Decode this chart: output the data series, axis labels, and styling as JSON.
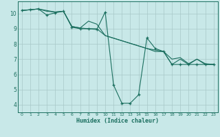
{
  "bg_color": "#c8e8e8",
  "grid_color": "#a8c8c8",
  "line_color": "#1a6e5e",
  "xlabel": "Humidex (Indice chaleur)",
  "xlim": [
    -0.5,
    23.5
  ],
  "ylim": [
    3.5,
    10.8
  ],
  "yticks": [
    4,
    5,
    6,
    7,
    8,
    9,
    10
  ],
  "xticks": [
    0,
    1,
    2,
    3,
    4,
    5,
    6,
    7,
    8,
    9,
    10,
    11,
    12,
    13,
    14,
    15,
    16,
    17,
    18,
    19,
    20,
    21,
    22,
    23
  ],
  "line1_x": [
    0,
    1,
    2,
    3,
    4,
    5,
    6,
    7,
    8,
    9,
    10,
    15,
    16,
    17,
    18,
    19,
    20,
    21,
    22,
    23
  ],
  "line1_y": [
    10.2,
    10.25,
    10.3,
    10.2,
    10.1,
    10.15,
    9.15,
    9.05,
    9.0,
    9.0,
    8.55,
    7.7,
    7.6,
    7.5,
    7.0,
    7.1,
    6.7,
    7.0,
    6.7,
    6.65
  ],
  "line2_x": [
    0,
    1,
    2,
    3,
    4,
    5,
    6,
    7,
    8,
    9,
    10,
    11,
    12,
    13,
    14,
    15,
    16,
    17,
    18,
    19,
    20,
    21,
    22,
    23
  ],
  "line2_y": [
    10.2,
    10.25,
    10.3,
    9.9,
    10.05,
    10.15,
    9.1,
    9.0,
    9.0,
    8.95,
    10.1,
    5.3,
    4.1,
    4.1,
    4.65,
    8.4,
    7.7,
    7.5,
    6.65,
    6.65,
    6.65,
    6.65,
    6.65,
    6.65
  ],
  "line3_x": [
    0,
    1,
    2,
    3,
    4,
    5,
    6,
    7,
    8,
    9,
    10,
    15,
    16,
    17,
    18,
    19,
    20,
    21,
    22,
    23
  ],
  "line3_y": [
    10.2,
    10.25,
    10.3,
    10.15,
    10.1,
    10.15,
    9.15,
    9.05,
    9.5,
    9.3,
    8.55,
    7.7,
    7.5,
    7.5,
    6.65,
    7.0,
    6.65,
    7.0,
    6.65,
    6.65
  ],
  "markers_x2": [
    0,
    1,
    2,
    3,
    4,
    5,
    6,
    7,
    8,
    9,
    10,
    11,
    12,
    13,
    14,
    15,
    16,
    17,
    18,
    19,
    20,
    21,
    22,
    23
  ],
  "markers_y2": [
    10.2,
    10.25,
    10.3,
    9.9,
    10.05,
    10.15,
    9.1,
    9.0,
    9.0,
    8.95,
    10.1,
    5.3,
    4.1,
    4.1,
    4.65,
    8.4,
    7.7,
    7.5,
    6.65,
    6.65,
    6.65,
    6.65,
    6.65,
    6.65
  ]
}
